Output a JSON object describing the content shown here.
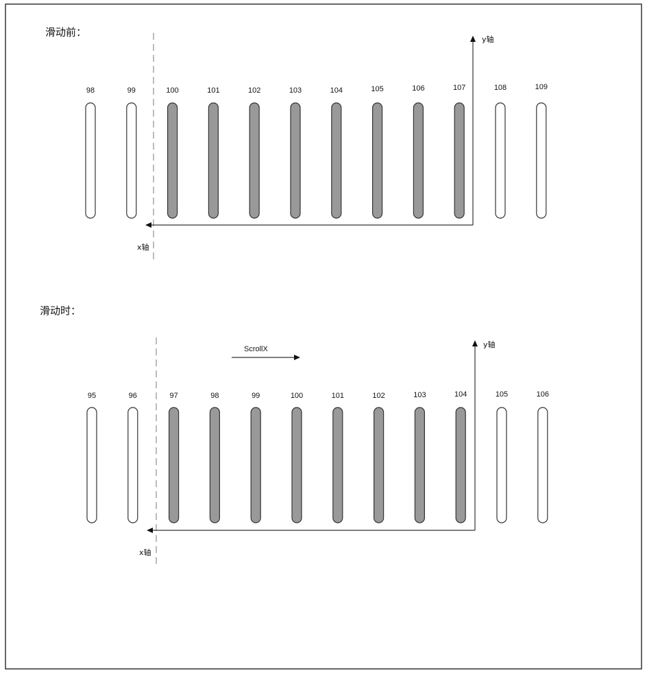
{
  "colors": {
    "filled": "#999999",
    "empty": "#ffffff",
    "stroke": "#333333",
    "dash": "#bbbbbb"
  },
  "panels": [
    {
      "title": "滑动前：",
      "y_axis_label": "y轴",
      "x_axis_label": "x轴",
      "scroll_label": "",
      "items": [
        {
          "label": "98",
          "state": "empty"
        },
        {
          "label": "99",
          "state": "empty"
        },
        {
          "label": "100",
          "state": "filled"
        },
        {
          "label": "101",
          "state": "filled"
        },
        {
          "label": "102",
          "state": "filled"
        },
        {
          "label": "103",
          "state": "filled"
        },
        {
          "label": "104",
          "state": "filled"
        },
        {
          "label": "105",
          "state": "filled"
        },
        {
          "label": "106",
          "state": "filled"
        },
        {
          "label": "107",
          "state": "filled"
        },
        {
          "label": "108",
          "state": "empty"
        },
        {
          "label": "109",
          "state": "empty"
        }
      ]
    },
    {
      "title": "滑动时：",
      "y_axis_label": "y轴",
      "x_axis_label": "x轴",
      "scroll_label": "ScrollX",
      "items": [
        {
          "label": "95",
          "state": "empty"
        },
        {
          "label": "96",
          "state": "empty"
        },
        {
          "label": "97",
          "state": "filled"
        },
        {
          "label": "98",
          "state": "filled"
        },
        {
          "label": "99",
          "state": "filled"
        },
        {
          "label": "100",
          "state": "filled"
        },
        {
          "label": "101",
          "state": "filled"
        },
        {
          "label": "102",
          "state": "filled"
        },
        {
          "label": "103",
          "state": "filled"
        },
        {
          "label": "104",
          "state": "filled"
        },
        {
          "label": "105",
          "state": "empty"
        },
        {
          "label": "106",
          "state": "empty"
        }
      ]
    }
  ]
}
